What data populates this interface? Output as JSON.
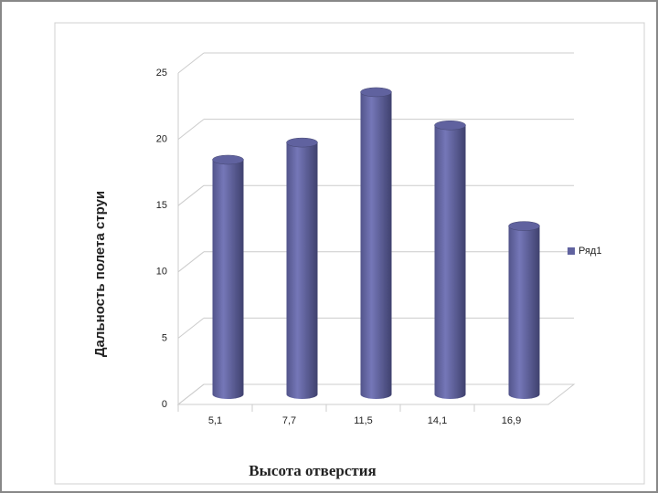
{
  "chart_data": {
    "type": "bar3d",
    "x_label": "Высота отверстия",
    "y_label": "Дальность полета струи",
    "categories": [
      "5,1",
      "7,7",
      "11,5",
      "14,1",
      "16,9"
    ],
    "series": [
      {
        "name": "Ряд1",
        "color": "#60629f",
        "values": [
          17.7,
          19,
          22.8,
          20.3,
          12.7
        ]
      }
    ],
    "ylim": [
      0,
      25
    ],
    "yticks": [
      0,
      5,
      10,
      15,
      20,
      25
    ],
    "grid": true,
    "legend": "right"
  }
}
